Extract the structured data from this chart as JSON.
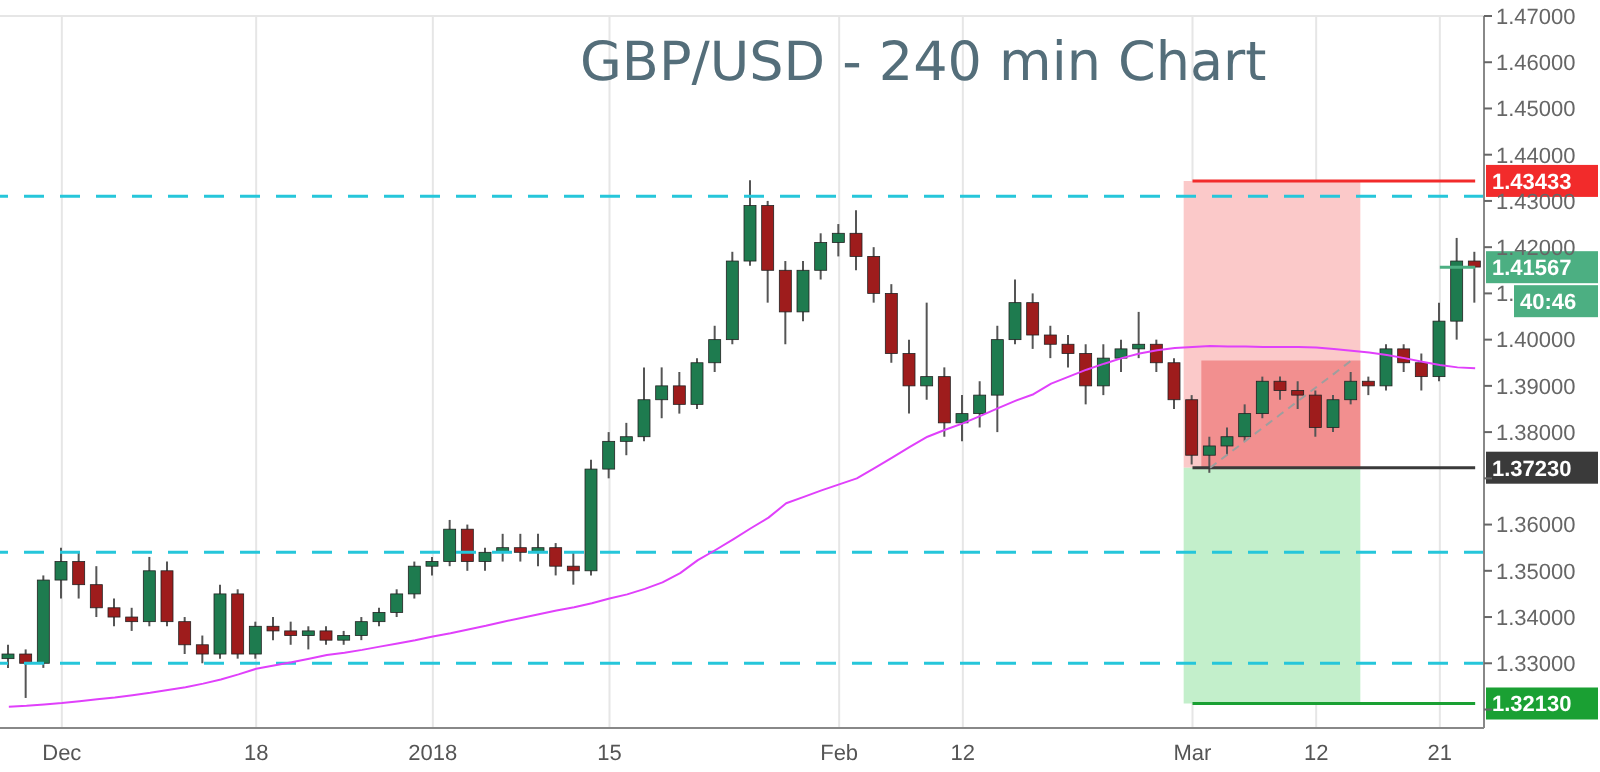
{
  "chart_data": {
    "type": "candlestick",
    "title": "GBP/USD - 240 min Chart",
    "categories": [
      null,
      null,
      null,
      "Dec",
      null,
      null,
      null,
      null,
      null,
      null,
      null,
      null,
      null,
      null,
      "18",
      null,
      null,
      null,
      null,
      null,
      null,
      null,
      null,
      null,
      "2018",
      null,
      null,
      null,
      null,
      null,
      null,
      null,
      null,
      null,
      "15",
      null,
      null,
      null,
      null,
      null,
      null,
      null,
      null,
      null,
      null,
      null,
      null,
      "Feb",
      null,
      null,
      null,
      null,
      null,
      null,
      "12",
      null,
      null,
      null,
      null,
      null,
      null,
      null,
      null,
      null,
      null,
      null,
      null,
      "Mar",
      null,
      null,
      null,
      null,
      null,
      null,
      "12",
      null,
      null,
      null,
      null,
      null,
      null,
      "21",
      null,
      null
    ],
    "ohlc": [
      [
        1.331,
        1.334,
        1.329,
        1.332
      ],
      [
        1.332,
        1.333,
        1.3225,
        1.33
      ],
      [
        1.33,
        1.349,
        1.329,
        1.348
      ],
      [
        1.348,
        1.355,
        1.344,
        1.352
      ],
      [
        1.352,
        1.354,
        1.344,
        1.347
      ],
      [
        1.347,
        1.351,
        1.34,
        1.342
      ],
      [
        1.342,
        1.344,
        1.338,
        1.34
      ],
      [
        1.34,
        1.342,
        1.337,
        1.339
      ],
      [
        1.339,
        1.353,
        1.338,
        1.35
      ],
      [
        1.35,
        1.352,
        1.338,
        1.339
      ],
      [
        1.339,
        1.34,
        1.332,
        1.334
      ],
      [
        1.334,
        1.336,
        1.33,
        1.332
      ],
      [
        1.332,
        1.347,
        1.331,
        1.345
      ],
      [
        1.345,
        1.346,
        1.331,
        1.332
      ],
      [
        1.332,
        1.339,
        1.331,
        1.338
      ],
      [
        1.338,
        1.34,
        1.335,
        1.337
      ],
      [
        1.337,
        1.339,
        1.334,
        1.336
      ],
      [
        1.336,
        1.338,
        1.333,
        1.337
      ],
      [
        1.337,
        1.338,
        1.334,
        1.335
      ],
      [
        1.335,
        1.337,
        1.334,
        1.336
      ],
      [
        1.336,
        1.34,
        1.335,
        1.339
      ],
      [
        1.339,
        1.342,
        1.338,
        1.341
      ],
      [
        1.341,
        1.346,
        1.34,
        1.345
      ],
      [
        1.345,
        1.352,
        1.344,
        1.351
      ],
      [
        1.351,
        1.353,
        1.349,
        1.352
      ],
      [
        1.352,
        1.361,
        1.351,
        1.359
      ],
      [
        1.359,
        1.36,
        1.35,
        1.352
      ],
      [
        1.352,
        1.355,
        1.35,
        1.354
      ],
      [
        1.354,
        1.358,
        1.352,
        1.355
      ],
      [
        1.355,
        1.358,
        1.352,
        1.354
      ],
      [
        1.354,
        1.358,
        1.351,
        1.355
      ],
      [
        1.355,
        1.356,
        1.349,
        1.351
      ],
      [
        1.351,
        1.354,
        1.347,
        1.35
      ],
      [
        1.35,
        1.374,
        1.349,
        1.372
      ],
      [
        1.372,
        1.38,
        1.37,
        1.378
      ],
      [
        1.378,
        1.382,
        1.375,
        1.379
      ],
      [
        1.379,
        1.394,
        1.378,
        1.387
      ],
      [
        1.387,
        1.394,
        1.383,
        1.39
      ],
      [
        1.39,
        1.393,
        1.384,
        1.386
      ],
      [
        1.386,
        1.396,
        1.385,
        1.395
      ],
      [
        1.395,
        1.403,
        1.393,
        1.4
      ],
      [
        1.4,
        1.419,
        1.399,
        1.417
      ],
      [
        1.417,
        1.4345,
        1.416,
        1.429
      ],
      [
        1.429,
        1.43,
        1.408,
        1.415
      ],
      [
        1.415,
        1.417,
        1.399,
        1.406
      ],
      [
        1.406,
        1.417,
        1.404,
        1.415
      ],
      [
        1.415,
        1.423,
        1.413,
        1.421
      ],
      [
        1.421,
        1.425,
        1.418,
        1.423
      ],
      [
        1.423,
        1.428,
        1.415,
        1.418
      ],
      [
        1.418,
        1.42,
        1.408,
        1.41
      ],
      [
        1.41,
        1.412,
        1.395,
        1.397
      ],
      [
        1.397,
        1.4,
        1.384,
        1.39
      ],
      [
        1.39,
        1.408,
        1.387,
        1.392
      ],
      [
        1.392,
        1.394,
        1.379,
        1.382
      ],
      [
        1.382,
        1.388,
        1.378,
        1.384
      ],
      [
        1.384,
        1.391,
        1.381,
        1.388
      ],
      [
        1.388,
        1.403,
        1.38,
        1.4
      ],
      [
        1.4,
        1.413,
        1.399,
        1.408
      ],
      [
        1.408,
        1.41,
        1.398,
        1.401
      ],
      [
        1.401,
        1.403,
        1.396,
        1.399
      ],
      [
        1.399,
        1.401,
        1.394,
        1.397
      ],
      [
        1.397,
        1.399,
        1.386,
        1.39
      ],
      [
        1.39,
        1.399,
        1.388,
        1.396
      ],
      [
        1.396,
        1.4,
        1.393,
        1.398
      ],
      [
        1.398,
        1.406,
        1.396,
        1.399
      ],
      [
        1.399,
        1.4,
        1.393,
        1.395
      ],
      [
        1.395,
        1.396,
        1.385,
        1.387
      ],
      [
        1.387,
        1.388,
        1.373,
        1.375
      ],
      [
        1.375,
        1.379,
        1.3712,
        1.377
      ],
      [
        1.377,
        1.381,
        1.375,
        1.379
      ],
      [
        1.379,
        1.386,
        1.378,
        1.384
      ],
      [
        1.384,
        1.392,
        1.383,
        1.391
      ],
      [
        1.391,
        1.392,
        1.387,
        1.389
      ],
      [
        1.389,
        1.391,
        1.385,
        1.388
      ],
      [
        1.388,
        1.389,
        1.379,
        1.381
      ],
      [
        1.381,
        1.388,
        1.38,
        1.387
      ],
      [
        1.387,
        1.393,
        1.386,
        1.391
      ],
      [
        1.391,
        1.392,
        1.388,
        1.39
      ],
      [
        1.39,
        1.399,
        1.389,
        1.398
      ],
      [
        1.398,
        1.399,
        1.393,
        1.395
      ],
      [
        1.395,
        1.397,
        1.389,
        1.392
      ],
      [
        1.392,
        1.408,
        1.391,
        1.404
      ],
      [
        1.404,
        1.422,
        1.4,
        1.417
      ],
      [
        1.417,
        1.419,
        1.408,
        1.4157
      ]
    ],
    "series": [
      {
        "type": "line",
        "color": "#e040fb",
        "values": [
          1.3206,
          1.3208,
          1.3211,
          1.3214,
          1.3218,
          1.3222,
          1.3226,
          1.3231,
          1.3236,
          1.3242,
          1.3248,
          1.3256,
          1.3265,
          1.3276,
          1.3288,
          1.3295,
          1.3302,
          1.331,
          1.3318,
          1.3323,
          1.3329,
          1.3336,
          1.3343,
          1.335,
          1.3358,
          1.3365,
          1.3373,
          1.3381,
          1.339,
          1.3398,
          1.3406,
          1.3414,
          1.3421,
          1.343,
          1.344,
          1.3449,
          1.3461,
          1.3475,
          1.3495,
          1.3523,
          1.3545,
          1.3568,
          1.3592,
          1.3615,
          1.3646,
          1.366,
          1.3674,
          1.3687,
          1.37,
          1.3722,
          1.3745,
          1.3768,
          1.379,
          1.3805,
          1.3819,
          1.3835,
          1.3852,
          1.3868,
          1.3882,
          1.3905,
          1.392,
          1.3935,
          1.3948,
          1.396,
          1.397,
          1.3977,
          1.3982,
          1.3984,
          1.3986,
          1.3985,
          1.3985,
          1.3984,
          1.3984,
          1.3984,
          1.3983,
          1.398,
          1.3976,
          1.3972,
          1.3967,
          1.396,
          1.3952,
          1.3945,
          1.394,
          1.3938
        ]
      },
      {
        "type": "line",
        "color": "#9e9e9e",
        "line_style": "dashed",
        "values": [
          null,
          null,
          null,
          null,
          null,
          null,
          null,
          null,
          null,
          null,
          null,
          null,
          null,
          null,
          null,
          null,
          null,
          null,
          null,
          null,
          null,
          null,
          null,
          null,
          null,
          null,
          null,
          null,
          null,
          null,
          null,
          null,
          null,
          null,
          null,
          null,
          null,
          null,
          null,
          null,
          null,
          null,
          null,
          null,
          null,
          null,
          null,
          null,
          null,
          null,
          null,
          null,
          null,
          null,
          null,
          null,
          null,
          null,
          null,
          null,
          null,
          null,
          null,
          null,
          null,
          null,
          null,
          null,
          1.3723,
          1.3752,
          1.3781,
          1.381,
          1.3839,
          1.3868,
          1.3897,
          1.3926,
          1.3955,
          null,
          null,
          null,
          null,
          null,
          null,
          null
        ]
      }
    ],
    "ylim": [
      1.316,
      1.47
    ],
    "yticks": [
      {
        "value": 1.32,
        "label": null
      },
      {
        "value": 1.33,
        "label": "1.33000"
      },
      {
        "value": 1.34,
        "label": "1.34000"
      },
      {
        "value": 1.35,
        "label": "1.35000"
      },
      {
        "value": 1.36,
        "label": "1.36000"
      },
      {
        "value": 1.37,
        "label": null
      },
      {
        "value": 1.38,
        "label": "1.38000"
      },
      {
        "value": 1.39,
        "label": "1.39000"
      },
      {
        "value": 1.4,
        "label": "1.40000"
      },
      {
        "value": 1.41,
        "label": "1."
      },
      {
        "value": 1.42,
        "label": "1.42000"
      },
      {
        "value": 1.43,
        "label": "1.43000"
      },
      {
        "value": 1.44,
        "label": "1.44000"
      },
      {
        "value": 1.45,
        "label": "1.45000"
      },
      {
        "value": 1.46,
        "label": "1.46000"
      },
      {
        "value": 1.47,
        "label": "1.47000"
      }
    ],
    "ref_lines": [
      {
        "axis": "y",
        "value": 1.431,
        "color": "#26c6da",
        "line_style": "dashed"
      },
      {
        "axis": "y",
        "value": 1.354,
        "color": "#26c6da",
        "line_style": "dashed"
      },
      {
        "axis": "y",
        "value": 1.33,
        "color": "#26c6da",
        "line_style": "dashed"
      },
      {
        "axis": "y",
        "value": 1.43433,
        "label": "1.43433",
        "color": "#f22b2b"
      },
      {
        "axis": "y",
        "value": 1.41567,
        "label": "1.41567",
        "color": "#4caf82"
      },
      {
        "axis": "y",
        "value": 1.3723,
        "label": "1.37230",
        "color": "#3a3a3a"
      },
      {
        "axis": "y",
        "value": 1.3213,
        "label": "1.32130",
        "color": "#1aa033"
      }
    ],
    "bands": [
      {
        "axis": "y",
        "from": 1.3723,
        "to": 1.43433,
        "color": "#fbc9c9"
      },
      {
        "axis": "y",
        "from": 1.3723,
        "to": 1.3955,
        "color": "#f28f8f"
      },
      {
        "axis": "y",
        "from": 1.3213,
        "to": 1.3723,
        "color": "#c3efcb"
      }
    ],
    "annotations": [
      "40:46"
    ],
    "grid": true
  }
}
